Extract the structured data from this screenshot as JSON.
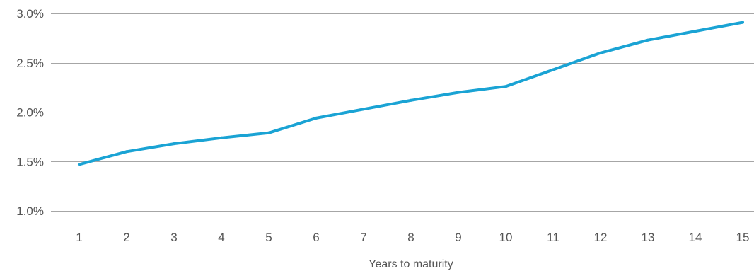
{
  "chart_data": {
    "type": "line",
    "title": "",
    "xlabel": "Years to maturity",
    "ylabel": "",
    "x": [
      1,
      2,
      3,
      4,
      5,
      6,
      7,
      8,
      9,
      10,
      11,
      12,
      13,
      14,
      15
    ],
    "series": [
      {
        "values": [
          1.47,
          1.6,
          1.68,
          1.74,
          1.79,
          1.94,
          2.03,
          2.12,
          2.2,
          2.26,
          2.43,
          2.6,
          2.73,
          2.82,
          2.91
        ],
        "color": "#1aa3d4"
      }
    ],
    "ylim": [
      1.0,
      3.0
    ],
    "yticks": [
      1.0,
      1.5,
      2.0,
      2.5,
      3.0
    ],
    "ytick_labels": [
      "1.0%",
      "1.5%",
      "2.0%",
      "2.5%",
      "3.0%"
    ],
    "xtick_labels": [
      "1",
      "2",
      "3",
      "4",
      "5",
      "6",
      "7",
      "8",
      "9",
      "10",
      "11",
      "12",
      "13",
      "14",
      "15"
    ],
    "grid": true,
    "grid_color": "#a6a6a6",
    "legend": "none"
  }
}
